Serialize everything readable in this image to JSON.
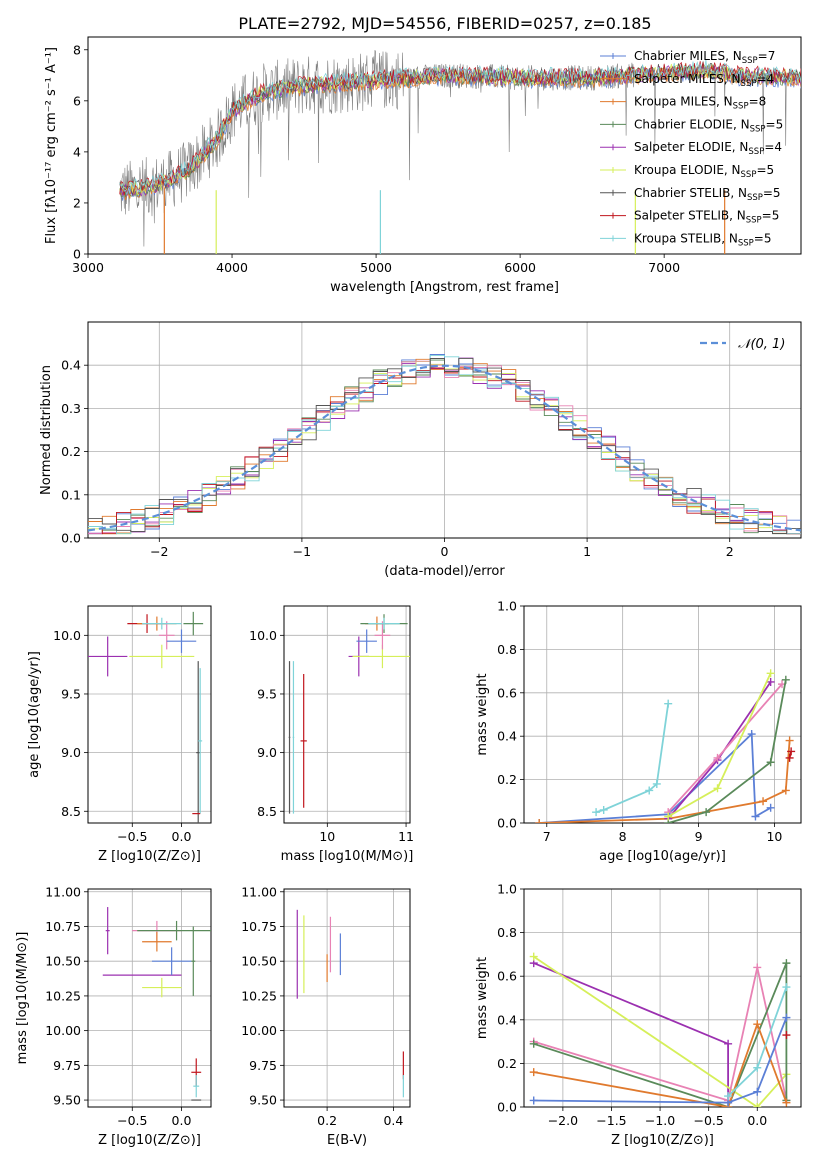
{
  "title": "PLATE=2792, MJD=54556, FIBERID=0257, z=0.185",
  "colors": {
    "Chabrier MILES": "#5b7fd6",
    "Salpeter MILES": "#e07a2e",
    "Kroupa MILES": "#e07a2e",
    "Chabrier ELODIE": "#5a8a5a",
    "Salpeter ELODIE": "#9b30b0",
    "Kroupa ELODIE": "#d6ef5a",
    "Chabrier STELIB": "#555555",
    "Salpeter STELIB": "#c0161e",
    "Kroupa STELIB": "#7fd3d8",
    "extra_pink": "#e882b4",
    "gaussian": "#5b8fd8"
  },
  "chart_data": [
    {
      "type": "line",
      "panel": "spectrum",
      "xlabel": "wavelength [Angstrom, rest frame]",
      "ylabel": "Flux [fλ10⁻¹⁷ erg cm⁻² s⁻¹ A⁻¹]",
      "xlim": [
        3000,
        7950
      ],
      "ylim": [
        0,
        8.5
      ],
      "xticks": [
        "3000",
        "4000",
        "5000",
        "6000",
        "7000"
      ],
      "yticks": [
        "0",
        "2",
        "4",
        "6",
        "8"
      ],
      "legend_placement": "right",
      "legend": [
        {
          "label": "Chabrier MILES, N",
          "sub": "SSP",
          "value": "=7",
          "color": "#5b7fd6"
        },
        {
          "label": "Salpeter MILES, N",
          "sub": "SSP",
          "value": "=4",
          "color": "#e07a2e"
        },
        {
          "label": "Kroupa MILES, N",
          "sub": "SSP",
          "value": "=8",
          "color": "#e07a2e"
        },
        {
          "label": "Chabrier ELODIE, N",
          "sub": "SSP",
          "value": "=5",
          "color": "#5a8a5a"
        },
        {
          "label": "Salpeter ELODIE, N",
          "sub": "SSP",
          "value": "=4",
          "color": "#9b30b0"
        },
        {
          "label": "Kroupa ELODIE, N",
          "sub": "SSP",
          "value": "=5",
          "color": "#d6ef5a"
        },
        {
          "label": "Chabrier STELIB, N",
          "sub": "SSP",
          "value": "=5",
          "color": "#555555"
        },
        {
          "label": "Salpeter STELIB, N",
          "sub": "SSP",
          "value": "=5",
          "color": "#c0161e"
        },
        {
          "label": "Kroupa STELIB, N",
          "sub": "SSP",
          "value": "=5",
          "color": "#7fd3d8"
        }
      ],
      "continuum": {
        "x": [
          3220,
          3400,
          3540,
          3700,
          3900,
          4000,
          4200,
          4500,
          4800,
          5000,
          5500,
          6000,
          6500,
          7000,
          7300,
          7500,
          7950
        ],
        "y": [
          2.45,
          2.6,
          2.8,
          3.3,
          4.5,
          5.6,
          6.3,
          6.6,
          6.7,
          6.8,
          7.0,
          6.9,
          6.9,
          7.1,
          7.2,
          7.0,
          6.9
        ]
      }
    },
    {
      "type": "line",
      "panel": "residuals",
      "xlabel": "(data-model)/error",
      "ylabel": "Normed distribution",
      "xlim": [
        -2.5,
        2.5
      ],
      "ylim": [
        0,
        0.5
      ],
      "xticks": [
        "−2",
        "−1",
        "0",
        "1",
        "2"
      ],
      "yticks": [
        "0.0",
        "0.1",
        "0.2",
        "0.3",
        "0.4"
      ],
      "legend_placement": "top-right",
      "legend_label": "𝒩(0, 1)"
    },
    {
      "type": "scatter",
      "panel": "age_vs_Z",
      "xlabel": "Z [log10(Z/Z⊙)]",
      "ylabel": "age  [log10(age/yr)]",
      "xlim": [
        -0.95,
        0.3
      ],
      "ylim": [
        8.4,
        10.25
      ],
      "xticks": [
        "−0.5",
        "0.0"
      ],
      "yticks": [
        "8.5",
        "9.0",
        "9.5",
        "10.0"
      ],
      "points": [
        {
          "x": -0.75,
          "y": 9.82,
          "xerr": 0.2,
          "yerr": 0.17,
          "color": "#9b30b0"
        },
        {
          "x": -0.35,
          "y": 10.1,
          "xerr": 0.2,
          "yerr": 0.08,
          "color": "#c0161e"
        },
        {
          "x": -0.2,
          "y": 9.82,
          "xerr": 0.33,
          "yerr": 0.1,
          "color": "#d6ef5a"
        },
        {
          "x": -0.25,
          "y": 10.1,
          "xerr": 0.2,
          "yerr": 0.06,
          "color": "#e07a2e"
        },
        {
          "x": -0.15,
          "y": 10.0,
          "xerr": 0.08,
          "yerr": 0.12,
          "color": "#e882b4"
        },
        {
          "x": 0.0,
          "y": 9.95,
          "xerr": 0.15,
          "yerr": 0.1,
          "color": "#5b7fd6"
        },
        {
          "x": 0.12,
          "y": 10.1,
          "xerr": 0.1,
          "yerr": 0.1,
          "color": "#5a8a5a"
        },
        {
          "x": -0.2,
          "y": 10.1,
          "xerr": 0.2,
          "yerr": 0.05,
          "color": "#7fd3d8"
        },
        {
          "x": 0.17,
          "y": 9.0,
          "xerr": 0.02,
          "yerr": 0.78,
          "color": "#555555"
        },
        {
          "x": 0.19,
          "y": 9.1,
          "xerr": 0.02,
          "yerr": 0.62,
          "color": "#7fd3d8"
        },
        {
          "x": 0.15,
          "y": 8.48,
          "xerr": 0.04,
          "yerr": 0.0,
          "color": "#c0161e"
        }
      ]
    },
    {
      "type": "scatter",
      "panel": "age_vs_mass",
      "xlabel": "mass [log10(M/M⊙)]",
      "ylabel": "",
      "xlim": [
        9.45,
        11.05
      ],
      "ylim": [
        8.4,
        10.25
      ],
      "xticks": [
        "10",
        "11"
      ],
      "yticks": [
        "8.5",
        "9.0",
        "9.5",
        "10.0"
      ],
      "points": [
        {
          "x": 10.4,
          "y": 9.82,
          "xerr": 0.13,
          "yerr": 0.17,
          "color": "#9b30b0"
        },
        {
          "x": 10.7,
          "y": 9.82,
          "xerr": 0.38,
          "yerr": 0.1,
          "color": "#d6ef5a"
        },
        {
          "x": 10.63,
          "y": 10.1,
          "xerr": 0.15,
          "yerr": 0.06,
          "color": "#e07a2e"
        },
        {
          "x": 10.7,
          "y": 10.0,
          "xerr": 0.1,
          "yerr": 0.12,
          "color": "#e882b4"
        },
        {
          "x": 10.5,
          "y": 9.95,
          "xerr": 0.13,
          "yerr": 0.1,
          "color": "#5b7fd6"
        },
        {
          "x": 10.72,
          "y": 10.1,
          "xerr": 0.3,
          "yerr": 0.08,
          "color": "#5a8a5a"
        },
        {
          "x": 10.72,
          "y": 10.1,
          "xerr": 0.2,
          "yerr": 0.05,
          "color": "#7fd3d8"
        },
        {
          "x": 9.7,
          "y": 9.1,
          "xerr": 0.04,
          "yerr": 0.57,
          "color": "#c0161e"
        },
        {
          "x": 9.52,
          "y": 9.13,
          "xerr": 0.01,
          "yerr": 0.65,
          "color": "#555555"
        },
        {
          "x": 9.57,
          "y": 9.13,
          "xerr": 0.01,
          "yerr": 0.65,
          "color": "#7fd3d8"
        }
      ]
    },
    {
      "type": "line",
      "panel": "weight_vs_age",
      "xlabel": "age  [log10(age/yr)]",
      "ylabel": "mass weight",
      "xlim": [
        6.7,
        10.35
      ],
      "ylim": [
        0,
        1.0
      ],
      "xticks": [
        "7",
        "8",
        "9",
        "10"
      ],
      "yticks": [
        "0.0",
        "0.2",
        "0.4",
        "0.6",
        "0.8",
        "1.0"
      ],
      "series": [
        {
          "color": "#7fd3d8",
          "x": [
            7.65,
            7.75,
            8.35,
            8.45,
            8.6
          ],
          "y": [
            0.05,
            0.06,
            0.15,
            0.18,
            0.55
          ]
        },
        {
          "color": "#5b7fd6",
          "x": [
            6.9,
            8.6,
            9.7,
            9.75,
            9.95
          ],
          "y": [
            0.0,
            0.04,
            0.41,
            0.03,
            0.07
          ]
        },
        {
          "color": "#e07a2e",
          "x": [
            6.9,
            8.6,
            9.85,
            10.15,
            10.2
          ],
          "y": [
            0.0,
            0.02,
            0.1,
            0.15,
            0.38
          ]
        },
        {
          "color": "#9b30b0",
          "x": [
            8.6,
            9.25,
            9.95
          ],
          "y": [
            0.02,
            0.29,
            0.65
          ]
        },
        {
          "color": "#e882b4",
          "x": [
            8.6,
            9.25,
            10.1
          ],
          "y": [
            0.05,
            0.3,
            0.64
          ]
        },
        {
          "color": "#5a8a5a",
          "x": [
            8.6,
            9.1,
            9.95,
            10.15
          ],
          "y": [
            0.0,
            0.05,
            0.28,
            0.66
          ]
        },
        {
          "color": "#d6ef5a",
          "x": [
            8.6,
            9.25,
            9.95
          ],
          "y": [
            0.03,
            0.16,
            0.69
          ]
        },
        {
          "color": "#c0161e",
          "x": [
            10.2,
            10.22
          ],
          "y": [
            0.3,
            0.33
          ]
        }
      ]
    },
    {
      "type": "scatter",
      "panel": "mass_vs_Z",
      "xlabel": "Z [log10(Z/Z⊙)]",
      "ylabel": "mass [log10(M/M⊙)]",
      "xlim": [
        -0.95,
        0.3
      ],
      "ylim": [
        9.45,
        11.02
      ],
      "xticks": [
        "−0.5",
        "0.0"
      ],
      "yticks": [
        "9.50",
        "9.75",
        "10.00",
        "10.25",
        "10.50",
        "10.75",
        "11.00"
      ],
      "points": [
        {
          "x": -0.75,
          "y": 10.72,
          "xerr": 0.02,
          "yerr": 0.17,
          "color": "#9b30b0"
        },
        {
          "x": -0.4,
          "y": 10.4,
          "xerr": 0.4,
          "yerr": 0.0,
          "color": "#9b30b0"
        },
        {
          "x": -0.25,
          "y": 10.72,
          "xerr": 0.25,
          "yerr": 0.07,
          "color": "#e882b4"
        },
        {
          "x": -0.25,
          "y": 10.64,
          "xerr": 0.15,
          "yerr": 0.07,
          "color": "#e07a2e"
        },
        {
          "x": -0.2,
          "y": 10.31,
          "xerr": 0.2,
          "yerr": 0.07,
          "color": "#d6ef5a"
        },
        {
          "x": -0.1,
          "y": 10.5,
          "xerr": 0.2,
          "yerr": 0.1,
          "color": "#5b7fd6"
        },
        {
          "x": -0.05,
          "y": 10.72,
          "xerr": 0.4,
          "yerr": 0.07,
          "color": "#5a8a5a"
        },
        {
          "x": 0.12,
          "y": 10.5,
          "xerr": 0.02,
          "yerr": 0.25,
          "color": "#5a8a5a"
        },
        {
          "x": 0.15,
          "y": 9.7,
          "xerr": 0.05,
          "yerr": 0.1,
          "color": "#c0161e"
        },
        {
          "x": 0.15,
          "y": 9.6,
          "xerr": 0.03,
          "yerr": 0.08,
          "color": "#7fd3d8"
        },
        {
          "x": 0.15,
          "y": 9.5,
          "xerr": 0.05,
          "yerr": 0.0,
          "color": "#555555"
        }
      ]
    },
    {
      "type": "scatter",
      "panel": "mass_vs_ebv",
      "xlabel": "E(B-V)",
      "ylabel": "",
      "xlim": [
        0.07,
        0.45
      ],
      "ylim": [
        9.45,
        11.02
      ],
      "xticks": [
        "0.2",
        "0.4"
      ],
      "yticks": [
        "9.50",
        "9.75",
        "10.00",
        "10.25",
        "10.50",
        "10.75",
        "11.00"
      ],
      "points": [
        {
          "x": 0.11,
          "y": 10.55,
          "yerr": 0.32,
          "color": "#9b30b0"
        },
        {
          "x": 0.13,
          "y": 10.55,
          "yerr": 0.28,
          "color": "#d6ef5a"
        },
        {
          "x": 0.2,
          "y": 10.45,
          "yerr": 0.1,
          "color": "#e07a2e"
        },
        {
          "x": 0.21,
          "y": 10.62,
          "yerr": 0.2,
          "color": "#e882b4"
        },
        {
          "x": 0.24,
          "y": 10.55,
          "yerr": 0.15,
          "color": "#5b7fd6"
        },
        {
          "x": 0.43,
          "y": 9.75,
          "yerr": 0.1,
          "color": "#c0161e"
        },
        {
          "x": 0.43,
          "y": 9.6,
          "yerr": 0.08,
          "color": "#7fd3d8"
        }
      ]
    },
    {
      "type": "line",
      "panel": "weight_vs_Z",
      "xlabel": "Z [log10(Z/Z⊙)]",
      "ylabel": "mass weight",
      "xlim": [
        -2.4,
        0.45
      ],
      "ylim": [
        0,
        1.0
      ],
      "xticks": [
        "−2.0",
        "−1.5",
        "−1.0",
        "−0.5",
        "0.0"
      ],
      "yticks": [
        "0.0",
        "0.2",
        "0.4",
        "0.6",
        "0.8",
        "1.0"
      ],
      "series": [
        {
          "color": "#9b30b0",
          "x": [
            -2.3,
            -0.3,
            -0.3
          ],
          "y": [
            0.66,
            0.29,
            0.02
          ]
        },
        {
          "color": "#d6ef5a",
          "x": [
            -2.3,
            0.0,
            0.3
          ],
          "y": [
            0.69,
            0.0,
            0.15
          ]
        },
        {
          "color": "#e882b4",
          "x": [
            -2.3,
            -0.3,
            0.0,
            0.3
          ],
          "y": [
            0.3,
            0.03,
            0.64,
            0.03
          ]
        },
        {
          "color": "#5a8a5a",
          "x": [
            -2.3,
            -0.3,
            0.3,
            0.3
          ],
          "y": [
            0.29,
            0.0,
            0.66,
            0.03
          ]
        },
        {
          "color": "#e07a2e",
          "x": [
            -2.3,
            -0.3,
            0.0,
            0.3
          ],
          "y": [
            0.16,
            0.0,
            0.38,
            0.02
          ]
        },
        {
          "color": "#5b7fd6",
          "x": [
            -2.3,
            -0.3,
            0.0,
            0.3
          ],
          "y": [
            0.03,
            0.02,
            0.07,
            0.41
          ]
        },
        {
          "color": "#7fd3d8",
          "x": [
            -0.3,
            0.0,
            0.3
          ],
          "y": [
            0.05,
            0.18,
            0.55
          ]
        },
        {
          "color": "#c0161e",
          "x": [
            0.3
          ],
          "y": [
            0.33
          ]
        }
      ]
    }
  ]
}
